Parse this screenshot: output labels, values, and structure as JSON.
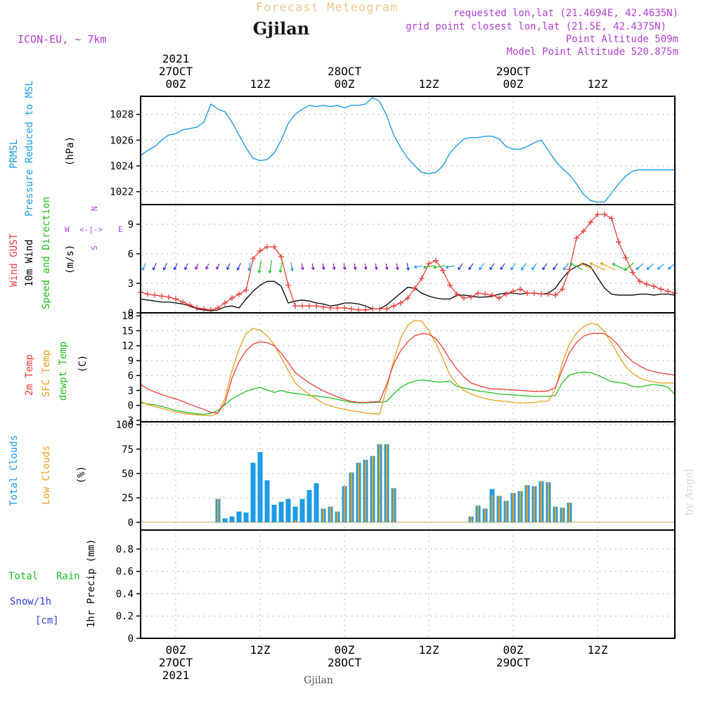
{
  "header": {
    "app_title": "Forecast Meteogram",
    "location": "Gjilan",
    "model": "ICON-EU, ~ 7km",
    "requested": "requested lon,lat (21.4694E, 42.4635N)",
    "grid_point": "grid point closest lon,lat (21.5E, 42.4375N)",
    "point_altitude": "Point Altitude 509m",
    "model_altitude": "Model Point Altitude 520.875m"
  },
  "colors": {
    "title": "#f0c88c",
    "meta": "#b040d0",
    "blue": "#1e9be6",
    "red": "#e8403c",
    "green": "#22c020",
    "orange": "#e6a020",
    "navy": "#2d3fd8",
    "grid": "#999999"
  },
  "time_axis": {
    "ticks": [
      {
        "h": 0,
        "top": [
          "2021",
          "27OCT",
          "00Z"
        ],
        "bottom": [
          "00Z",
          "27OCT",
          "2021"
        ]
      },
      {
        "h": 12,
        "top": [
          "12Z"
        ],
        "bottom": [
          "12Z"
        ]
      },
      {
        "h": 24,
        "top": [
          "28OCT",
          "00Z"
        ],
        "bottom": [
          "00Z",
          "28OCT"
        ]
      },
      {
        "h": 36,
        "top": [
          "12Z"
        ],
        "bottom": [
          "12Z"
        ]
      },
      {
        "h": 48,
        "top": [
          "29OCT",
          "00Z"
        ],
        "bottom": [
          "00Z",
          "29OCT"
        ]
      },
      {
        "h": 60,
        "top": [
          "12Z"
        ],
        "bottom": [
          "12Z"
        ]
      }
    ],
    "bottom_caption": "Gjilan"
  },
  "watermark": "by Angel",
  "panels": {
    "pressure": {
      "labels": [
        "PRMSL",
        "Pressure Reduced to MSL"
      ],
      "unit": "(hPa)",
      "ticks": [
        "1022",
        "1024",
        "1026",
        "1028"
      ]
    },
    "wind": {
      "labels": [
        "Wind GUST",
        "10m Wind",
        "Speed and Direction"
      ],
      "unit": "(m/s)",
      "ticks": [
        "0",
        "3",
        "6",
        "9"
      ],
      "compass": {
        "n": "N",
        "s": "S",
        "w": "W",
        "e": "E",
        "ns": "^\n|\nv",
        "we": "<-|->"
      }
    },
    "temp": {
      "labels": [
        "2m Temp",
        "SFC Temp",
        "dewpt Temp"
      ],
      "unit": "(C)",
      "ticks": [
        "-3",
        "0",
        "3",
        "6",
        "9",
        "12",
        "15",
        "18"
      ]
    },
    "clouds": {
      "labels": [
        "Total Clouds",
        "Low Clouds"
      ],
      "unit": "(%)",
      "ticks": [
        "0",
        "25",
        "50",
        "75",
        "100"
      ]
    },
    "precip": {
      "labels": [
        "Total",
        "Rain",
        "Snow/1h",
        "[cm]"
      ],
      "unit": "1hr Precip (mm)",
      "ticks": [
        "0",
        "0.2",
        "0.4",
        "0.6",
        "0.8"
      ]
    }
  },
  "chart_data": [
    {
      "type": "line",
      "title": "PRMSL Pressure Reduced to MSL",
      "ylabel": "hPa",
      "ylim": [
        1021,
        1029.4
      ],
      "x": [
        -5,
        -4,
        -3,
        -2,
        -1,
        0,
        1,
        2,
        3,
        4,
        5,
        6,
        7,
        8,
        9,
        10,
        11,
        12,
        13,
        14,
        15,
        16,
        17,
        18,
        19,
        20,
        21,
        22,
        23,
        24,
        25,
        26,
        27,
        28,
        29,
        30,
        31,
        32,
        33,
        34,
        35,
        36,
        37,
        38,
        39,
        40,
        41,
        42,
        43,
        44,
        45,
        46,
        47,
        48,
        49,
        50,
        51,
        52,
        53,
        54,
        55,
        56,
        57,
        58,
        59,
        60,
        61,
        62,
        63,
        64,
        65,
        66,
        67,
        68,
        69,
        70,
        71
      ],
      "series": [
        {
          "name": "PRMSL",
          "values": [
            1024.8,
            1025.2,
            1025.5,
            1026.0,
            1026.4,
            1026.5,
            1026.8,
            1026.9,
            1027.0,
            1027.4,
            1028.8,
            1028.4,
            1028.2,
            1027.4,
            1026.4,
            1025.4,
            1024.6,
            1024.4,
            1024.5,
            1025.0,
            1026.0,
            1027.3,
            1028.0,
            1028.4,
            1028.7,
            1028.6,
            1028.7,
            1028.6,
            1028.7,
            1028.5,
            1028.7,
            1028.7,
            1028.8,
            1029.3,
            1029.0,
            1027.9,
            1026.4,
            1025.4,
            1024.6,
            1024.0,
            1023.5,
            1023.4,
            1023.5,
            1024.0,
            1025.0,
            1025.6,
            1026.1,
            1026.2,
            1026.2,
            1026.3,
            1026.3,
            1026.1,
            1025.5,
            1025.3,
            1025.3,
            1025.5,
            1025.8,
            1026.0,
            1025.2,
            1024.4,
            1023.8,
            1023.3,
            1022.6,
            1021.8,
            1021.3,
            1021.2,
            1021.2,
            1021.9,
            1022.6,
            1023.2,
            1023.6,
            1023.7,
            1023.7,
            1023.7,
            1023.7,
            1023.7,
            1023.7
          ]
        }
      ]
    },
    {
      "type": "line",
      "title": "Wind GUST / 10m Wind",
      "ylabel": "m/s",
      "ylim": [
        0,
        11
      ],
      "x": [
        -5,
        -4,
        -3,
        -2,
        -1,
        0,
        1,
        2,
        3,
        4,
        5,
        6,
        7,
        8,
        9,
        10,
        11,
        12,
        13,
        14,
        15,
        16,
        17,
        18,
        19,
        20,
        21,
        22,
        23,
        24,
        25,
        26,
        27,
        28,
        29,
        30,
        31,
        32,
        33,
        34,
        35,
        36,
        37,
        38,
        39,
        40,
        41,
        42,
        43,
        44,
        45,
        46,
        47,
        48,
        49,
        50,
        51,
        52,
        53,
        54,
        55,
        56,
        57,
        58,
        59,
        60,
        61,
        62,
        63,
        64,
        65,
        66,
        67,
        68,
        69,
        70,
        71
      ],
      "series": [
        {
          "name": "Wind GUST",
          "values": [
            2.1,
            1.9,
            1.8,
            1.7,
            1.6,
            1.4,
            1.1,
            0.8,
            0.5,
            0.4,
            0.3,
            0.5,
            1.0,
            1.5,
            1.9,
            2.3,
            5.5,
            6.3,
            6.7,
            6.7,
            5.7,
            2.8,
            0.7,
            0.7,
            0.7,
            0.7,
            0.6,
            0.5,
            0.5,
            0.5,
            0.4,
            0.3,
            0.3,
            0.4,
            0.4,
            0.4,
            0.7,
            1.0,
            1.5,
            2.5,
            3.5,
            5.0,
            5.3,
            4.3,
            2.8,
            1.9,
            1.5,
            1.6,
            2.0,
            1.9,
            1.8,
            1.5,
            1.9,
            2.2,
            2.4,
            2.0,
            2.0,
            1.9,
            1.9,
            1.8,
            2.4,
            4.4,
            7.6,
            8.3,
            9.2,
            10.0,
            10.0,
            9.6,
            7.2,
            5.6,
            4.1,
            3.2,
            2.9,
            2.7,
            2.4,
            2.2,
            2.0
          ]
        },
        {
          "name": "10m Wind",
          "values": [
            1.4,
            1.3,
            1.2,
            1.1,
            1.1,
            1.0,
            0.9,
            0.7,
            0.4,
            0.3,
            0.2,
            0.3,
            0.6,
            0.7,
            0.5,
            1.4,
            2.2,
            2.8,
            3.2,
            3.2,
            2.7,
            1.0,
            1.2,
            1.3,
            1.2,
            1.0,
            0.9,
            0.7,
            0.8,
            1.0,
            1.0,
            0.9,
            0.7,
            0.4,
            0.4,
            0.8,
            1.4,
            2.0,
            2.6,
            2.5,
            2.0,
            1.7,
            1.5,
            1.4,
            1.4,
            1.8,
            1.8,
            1.7,
            1.6,
            1.6,
            1.7,
            1.9,
            2.0,
            2.0,
            1.9,
            2.0,
            2.0,
            1.9,
            2.0,
            2.5,
            3.5,
            4.3,
            4.7,
            5.0,
            4.7,
            3.6,
            2.5,
            1.9,
            1.8,
            1.8,
            1.8,
            1.9,
            1.9,
            1.8,
            1.9,
            1.9,
            1.8
          ]
        }
      ]
    },
    {
      "type": "line",
      "title": "Temperature",
      "ylabel": "C",
      "ylim": [
        -3.3,
        18.6
      ],
      "x": [
        -5,
        -4,
        -3,
        -2,
        -1,
        0,
        1,
        2,
        3,
        4,
        5,
        6,
        7,
        8,
        9,
        10,
        11,
        12,
        13,
        14,
        15,
        16,
        17,
        18,
        19,
        20,
        21,
        22,
        23,
        24,
        25,
        26,
        27,
        28,
        29,
        30,
        31,
        32,
        33,
        34,
        35,
        36,
        37,
        38,
        39,
        40,
        41,
        42,
        43,
        44,
        45,
        46,
        47,
        48,
        49,
        50,
        51,
        52,
        53,
        54,
        55,
        56,
        57,
        58,
        59,
        60,
        61,
        62,
        63,
        64,
        65,
        66,
        67,
        68,
        69,
        70,
        71
      ],
      "series": [
        {
          "name": "2m Temp",
          "values": [
            4.2,
            3.3,
            2.7,
            2.2,
            1.7,
            1.3,
            0.8,
            0.2,
            -0.3,
            -0.8,
            -1.4,
            -1.5,
            0.5,
            5.5,
            8.8,
            11.0,
            12.3,
            12.8,
            12.6,
            12.0,
            10.5,
            8.6,
            6.6,
            5.5,
            4.5,
            3.7,
            2.9,
            2.3,
            1.7,
            1.2,
            0.8,
            0.6,
            0.6,
            0.7,
            0.8,
            4.2,
            8.3,
            11.0,
            12.8,
            14.0,
            14.4,
            14.3,
            13.4,
            11.6,
            9.2,
            7.3,
            5.7,
            4.5,
            4.0,
            3.6,
            3.3,
            3.3,
            3.2,
            3.1,
            3.0,
            2.9,
            2.8,
            2.8,
            2.9,
            3.6,
            7.2,
            10.6,
            12.6,
            13.9,
            14.4,
            14.5,
            14.4,
            13.5,
            12.0,
            10.1,
            8.8,
            7.9,
            7.2,
            6.8,
            6.5,
            6.3,
            6.1
          ]
        },
        {
          "name": "SFC Temp",
          "values": [
            0.8,
            0.2,
            -0.2,
            -0.6,
            -1.0,
            -1.3,
            -1.6,
            -1.8,
            -1.9,
            -2.0,
            -2.1,
            -1.6,
            1.4,
            7.0,
            11.3,
            14.4,
            15.5,
            15.1,
            14.0,
            12.2,
            9.6,
            7.0,
            4.5,
            3.2,
            2.2,
            1.3,
            0.4,
            -0.1,
            -0.5,
            -0.8,
            -1.1,
            -1.3,
            -1.5,
            -1.7,
            -1.7,
            3.4,
            9.0,
            13.5,
            16.1,
            17.1,
            16.9,
            15.0,
            12.5,
            9.4,
            6.1,
            4.3,
            3.0,
            2.3,
            1.8,
            1.4,
            1.1,
            0.9,
            0.8,
            0.6,
            0.5,
            0.5,
            0.6,
            0.8,
            0.9,
            3.2,
            8.6,
            12.3,
            14.5,
            15.8,
            16.5,
            16.2,
            14.8,
            12.5,
            10.0,
            7.8,
            6.4,
            5.5,
            5.0,
            4.7,
            4.5,
            4.5,
            4.5
          ]
        },
        {
          "name": "dewpt Temp",
          "values": [
            0.5,
            0.3,
            0.1,
            -0.2,
            -0.6,
            -1.0,
            -1.3,
            -1.5,
            -1.7,
            -1.8,
            -1.6,
            -1.0,
            0.1,
            1.3,
            2.1,
            2.8,
            3.3,
            3.6,
            3.1,
            2.6,
            3.0,
            2.6,
            2.4,
            2.2,
            2.0,
            1.9,
            1.7,
            1.5,
            1.2,
            0.9,
            0.6,
            0.5,
            0.5,
            0.6,
            0.6,
            0.8,
            2.3,
            3.6,
            4.4,
            4.9,
            5.1,
            5.0,
            4.7,
            4.7,
            4.9,
            3.8,
            3.5,
            3.2,
            2.9,
            2.7,
            2.5,
            2.3,
            2.2,
            2.1,
            2.0,
            1.9,
            1.8,
            1.8,
            1.8,
            2.0,
            4.6,
            6.1,
            6.5,
            6.7,
            6.6,
            6.1,
            5.4,
            4.8,
            4.6,
            4.4,
            3.8,
            3.7,
            4.0,
            4.2,
            4.0,
            3.7,
            2.2
          ]
        }
      ]
    },
    {
      "type": "bar",
      "title": "Total Clouds / Low Clouds",
      "ylabel": "%",
      "ylim": [
        -8,
        103
      ],
      "x": [
        -5,
        -4,
        -3,
        -2,
        -1,
        0,
        1,
        2,
        3,
        4,
        5,
        6,
        7,
        8,
        9,
        10,
        11,
        12,
        13,
        14,
        15,
        16,
        17,
        18,
        19,
        20,
        21,
        22,
        23,
        24,
        25,
        26,
        27,
        28,
        29,
        30,
        31,
        32,
        33,
        34,
        35,
        36,
        37,
        38,
        39,
        40,
        41,
        42,
        43,
        44,
        45,
        46,
        47,
        48,
        49,
        50,
        51,
        52,
        53,
        54,
        55,
        56,
        57,
        58,
        59,
        60,
        61,
        62,
        63,
        64,
        65,
        66,
        67,
        68,
        69,
        70,
        71
      ],
      "series": [
        {
          "name": "Total Clouds",
          "values": [
            0,
            0,
            0,
            0,
            0,
            0,
            0,
            0,
            0,
            0,
            0,
            24,
            4,
            6,
            11,
            10,
            61,
            72,
            43,
            18,
            21,
            24,
            16,
            24,
            33,
            40,
            14,
            16,
            11,
            37,
            51,
            61,
            64,
            68,
            80,
            80,
            35,
            0,
            0,
            0,
            0,
            0,
            0,
            0,
            0,
            0,
            0,
            6,
            17,
            14,
            34,
            27,
            22,
            30,
            32,
            38,
            37,
            42,
            41,
            16,
            15,
            20,
            0,
            0,
            0,
            0,
            0,
            0,
            0,
            0,
            0,
            0,
            0,
            0,
            0,
            0,
            0
          ]
        },
        {
          "name": "Low Clouds",
          "values": [
            0,
            0,
            0,
            0,
            0,
            0,
            0,
            0,
            0,
            0,
            0,
            24,
            0,
            0,
            0,
            0,
            0,
            0,
            0,
            0,
            0,
            0,
            2,
            0,
            0,
            0,
            14,
            16,
            11,
            37,
            51,
            61,
            64,
            68,
            80,
            80,
            35,
            0,
            0,
            0,
            0,
            0,
            0,
            0,
            0,
            0,
            0,
            6,
            17,
            14,
            28,
            27,
            22,
            30,
            32,
            38,
            37,
            42,
            41,
            16,
            15,
            20,
            0,
            0,
            0,
            0,
            0,
            0,
            0,
            0,
            0,
            0,
            0,
            0,
            0,
            0,
            0
          ]
        }
      ]
    },
    {
      "type": "bar",
      "title": "1hr Precip",
      "ylabel": "mm",
      "ylim": [
        0,
        0.97
      ],
      "x": [
        -5,
        71
      ],
      "series": [
        {
          "name": "Total Rain",
          "values": [
            0,
            0
          ]
        }
      ]
    }
  ]
}
